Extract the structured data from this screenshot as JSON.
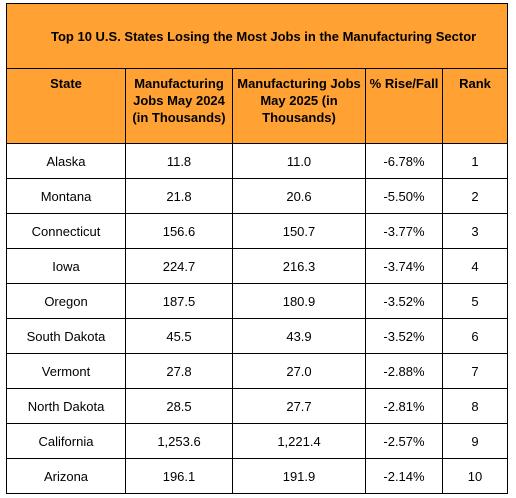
{
  "chart_data": {
    "type": "table",
    "title": "Top 10 U.S. States Losing the Most Jobs in the Manufacturing Sector",
    "columns": [
      "State",
      "Manufacturing Jobs May 2024 (in Thousands)",
      "Manufacturing Jobs May 2025 (in Thousands)",
      "% Rise/Fall",
      "Rank"
    ],
    "rows": [
      {
        "state": "Alaska",
        "may2024": "11.8",
        "may2025": "11.0",
        "pct": "-6.78%",
        "rank": "1"
      },
      {
        "state": "Montana",
        "may2024": "21.8",
        "may2025": "20.6",
        "pct": "-5.50%",
        "rank": "2"
      },
      {
        "state": "Connecticut",
        "may2024": "156.6",
        "may2025": "150.7",
        "pct": "-3.77%",
        "rank": "3"
      },
      {
        "state": "Iowa",
        "may2024": "224.7",
        "may2025": "216.3",
        "pct": "-3.74%",
        "rank": "4"
      },
      {
        "state": "Oregon",
        "may2024": "187.5",
        "may2025": "180.9",
        "pct": "-3.52%",
        "rank": "5"
      },
      {
        "state": "South Dakota",
        "may2024": "45.5",
        "may2025": "43.9",
        "pct": "-3.52%",
        "rank": "6"
      },
      {
        "state": "Vermont",
        "may2024": "27.8",
        "may2025": "27.0",
        "pct": "-2.88%",
        "rank": "7"
      },
      {
        "state": "North Dakota",
        "may2024": "28.5",
        "may2025": "27.7",
        "pct": "-2.81%",
        "rank": "8"
      },
      {
        "state": "California",
        "may2024": "1,253.6",
        "may2025": "1,221.4",
        "pct": "-2.57%",
        "rank": "9"
      },
      {
        "state": "Arizona",
        "may2024": "196.1",
        "may2025": "191.9",
        "pct": "-2.14%",
        "rank": "10"
      }
    ],
    "header_color": "#ffa133"
  }
}
